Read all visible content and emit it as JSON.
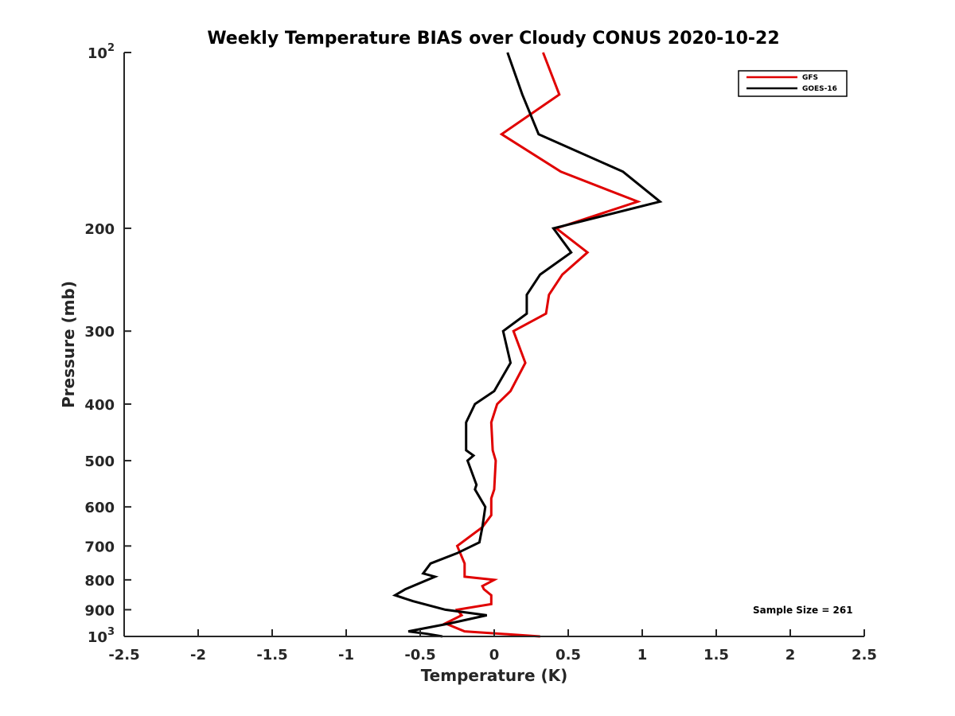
{
  "chart_data": {
    "type": "line",
    "title": "Weekly Temperature BIAS over Cloudy CONUS 2020-10-22",
    "xlabel": "Temperature (K)",
    "ylabel": "Pressure (mb)",
    "xlim": [
      -2.5,
      2.5
    ],
    "ylim": [
      100,
      1000
    ],
    "y_scale": "log",
    "y_reversed": true,
    "grid": false,
    "legend_position": "top-right",
    "x_ticks": [
      {
        "value": -2.5,
        "label": "-2.5"
      },
      {
        "value": -2,
        "label": "-2"
      },
      {
        "value": -1.5,
        "label": "-1.5"
      },
      {
        "value": -1,
        "label": "-1"
      },
      {
        "value": -0.5,
        "label": "-0.5"
      },
      {
        "value": 0,
        "label": "0"
      },
      {
        "value": 0.5,
        "label": "0.5"
      },
      {
        "value": 1,
        "label": "1"
      },
      {
        "value": 1.5,
        "label": "1.5"
      },
      {
        "value": 2,
        "label": "2"
      },
      {
        "value": 2.5,
        "label": "2.5"
      }
    ],
    "y_ticks": [
      {
        "value": 100,
        "base": "10",
        "exp": "2"
      },
      {
        "value": 200,
        "label": "200"
      },
      {
        "value": 300,
        "label": "300"
      },
      {
        "value": 400,
        "label": "400"
      },
      {
        "value": 500,
        "label": "500"
      },
      {
        "value": 600,
        "label": "600"
      },
      {
        "value": 700,
        "label": "700"
      },
      {
        "value": 800,
        "label": "800"
      },
      {
        "value": 900,
        "label": "900"
      },
      {
        "value": 1000,
        "base": "10",
        "exp": "3"
      }
    ],
    "series": [
      {
        "name": "GFS",
        "color": "#e00000",
        "points": [
          {
            "x": 0.33,
            "y": 100
          },
          {
            "x": 0.44,
            "y": 118
          },
          {
            "x": 0.05,
            "y": 138
          },
          {
            "x": 0.45,
            "y": 160
          },
          {
            "x": 0.97,
            "y": 180
          },
          {
            "x": 0.42,
            "y": 200
          },
          {
            "x": 0.63,
            "y": 220
          },
          {
            "x": 0.46,
            "y": 240
          },
          {
            "x": 0.37,
            "y": 260
          },
          {
            "x": 0.35,
            "y": 280
          },
          {
            "x": 0.13,
            "y": 300
          },
          {
            "x": 0.21,
            "y": 340
          },
          {
            "x": 0.11,
            "y": 380
          },
          {
            "x": 0.02,
            "y": 400
          },
          {
            "x": -0.02,
            "y": 430
          },
          {
            "x": -0.01,
            "y": 480
          },
          {
            "x": 0.01,
            "y": 500
          },
          {
            "x": 0.0,
            "y": 560
          },
          {
            "x": -0.02,
            "y": 580
          },
          {
            "x": -0.02,
            "y": 620
          },
          {
            "x": -0.08,
            "y": 650
          },
          {
            "x": -0.25,
            "y": 700
          },
          {
            "x": -0.2,
            "y": 750
          },
          {
            "x": -0.2,
            "y": 790
          },
          {
            "x": 0.0,
            "y": 800
          },
          {
            "x": -0.08,
            "y": 820
          },
          {
            "x": -0.07,
            "y": 830
          },
          {
            "x": -0.02,
            "y": 850
          },
          {
            "x": -0.02,
            "y": 880
          },
          {
            "x": -0.25,
            "y": 900
          },
          {
            "x": -0.22,
            "y": 920
          },
          {
            "x": -0.33,
            "y": 950
          },
          {
            "x": -0.2,
            "y": 980
          },
          {
            "x": 0.31,
            "y": 1000
          }
        ]
      },
      {
        "name": "GOES-16",
        "color": "#000000",
        "points": [
          {
            "x": 0.09,
            "y": 100
          },
          {
            "x": 0.19,
            "y": 118
          },
          {
            "x": 0.3,
            "y": 138
          },
          {
            "x": 0.87,
            "y": 160
          },
          {
            "x": 1.12,
            "y": 180
          },
          {
            "x": 0.4,
            "y": 200
          },
          {
            "x": 0.52,
            "y": 220
          },
          {
            "x": 0.31,
            "y": 240
          },
          {
            "x": 0.22,
            "y": 260
          },
          {
            "x": 0.22,
            "y": 280
          },
          {
            "x": 0.06,
            "y": 300
          },
          {
            "x": 0.11,
            "y": 340
          },
          {
            "x": 0.0,
            "y": 380
          },
          {
            "x": -0.13,
            "y": 400
          },
          {
            "x": -0.19,
            "y": 430
          },
          {
            "x": -0.19,
            "y": 480
          },
          {
            "x": -0.14,
            "y": 490
          },
          {
            "x": -0.18,
            "y": 500
          },
          {
            "x": -0.12,
            "y": 550
          },
          {
            "x": -0.13,
            "y": 560
          },
          {
            "x": -0.06,
            "y": 600
          },
          {
            "x": -0.08,
            "y": 650
          },
          {
            "x": -0.1,
            "y": 690
          },
          {
            "x": -0.25,
            "y": 720
          },
          {
            "x": -0.43,
            "y": 750
          },
          {
            "x": -0.48,
            "y": 780
          },
          {
            "x": -0.4,
            "y": 790
          },
          {
            "x": -0.6,
            "y": 830
          },
          {
            "x": -0.67,
            "y": 850
          },
          {
            "x": -0.55,
            "y": 870
          },
          {
            "x": -0.33,
            "y": 900
          },
          {
            "x": -0.05,
            "y": 920
          },
          {
            "x": -0.3,
            "y": 950
          },
          {
            "x": -0.58,
            "y": 980
          },
          {
            "x": -0.45,
            "y": 990
          },
          {
            "x": -0.35,
            "y": 1000
          }
        ]
      }
    ],
    "annotations": [
      "Sample Size = 261"
    ]
  }
}
